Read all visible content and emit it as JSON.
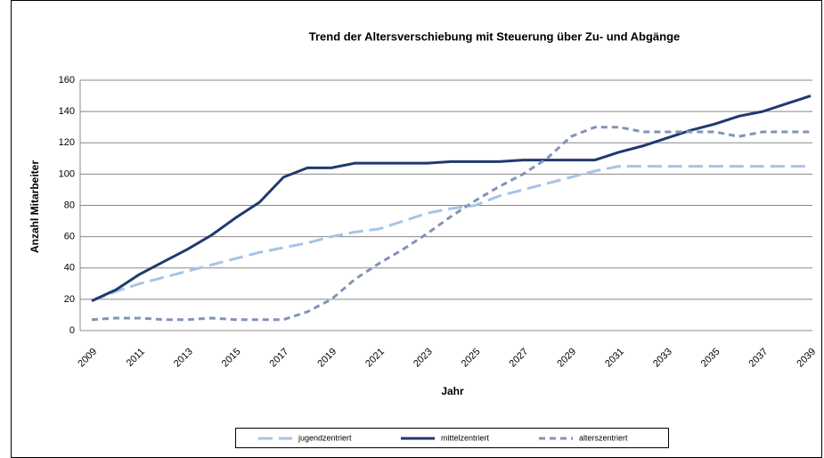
{
  "chart_data": {
    "type": "line",
    "title": "Trend der Altersverschiebung  mit Steuerung über Zu- und Abgänge",
    "x_label": "Jahr",
    "y_label": "Anzahl Mitarbeiter",
    "categories": [
      "2009",
      null,
      "2011",
      null,
      "2013",
      null,
      "2015",
      null,
      "2017",
      null,
      "2019",
      null,
      "2021",
      null,
      "2023",
      null,
      "2025",
      null,
      "2027",
      null,
      "2029",
      null,
      "2031",
      null,
      "2033",
      null,
      "2035",
      null,
      "2037",
      null,
      "2039"
    ],
    "series": [
      {
        "name": "jugendzentriert",
        "color": "#a6c4e6",
        "dash": "long",
        "values": [
          19,
          25,
          30,
          34,
          38,
          42,
          46,
          50,
          53,
          56,
          60,
          63,
          65,
          70,
          75,
          78,
          80,
          86,
          90,
          94,
          98,
          102,
          105,
          105,
          105,
          105,
          105,
          105,
          105,
          105,
          105
        ]
      },
      {
        "name": "mittelzentriert",
        "color": "#1f3a6e",
        "dash": "solid",
        "values": [
          19,
          26,
          36,
          44,
          52,
          61,
          72,
          82,
          98,
          104,
          104,
          107,
          107,
          107,
          107,
          108,
          108,
          108,
          109,
          109,
          109,
          109,
          114,
          118,
          123,
          128,
          132,
          137,
          140,
          145,
          150
        ]
      },
      {
        "name": "alterszentriert",
        "color": "#8194b8",
        "dash": "short",
        "values": [
          7,
          8,
          8,
          7,
          7,
          8,
          7,
          7,
          7,
          12,
          20,
          33,
          43,
          52,
          62,
          73,
          83,
          92,
          100,
          110,
          124,
          130,
          130,
          127,
          127,
          127,
          127,
          124,
          127,
          127,
          127
        ]
      }
    ],
    "ylim": [
      0,
      160
    ],
    "yticks": [
      0,
      20,
      40,
      60,
      80,
      100,
      120,
      140,
      160
    ],
    "grid": true,
    "legend": "bottom"
  }
}
